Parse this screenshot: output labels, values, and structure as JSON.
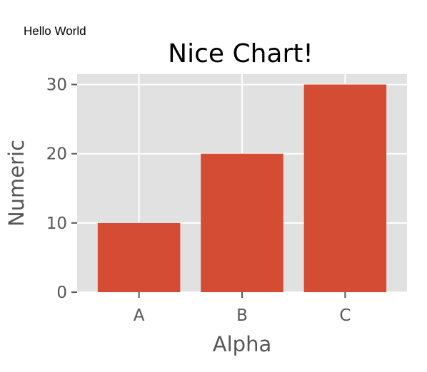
{
  "annotation": "Hello World",
  "chart_data": {
    "type": "bar",
    "title": "Nice Chart!",
    "xlabel": "Alpha",
    "ylabel": "Numeric",
    "categories": [
      "A",
      "B",
      "C"
    ],
    "values": [
      10,
      20,
      30
    ],
    "ylim": [
      0,
      31.5
    ],
    "yticks": [
      0,
      10,
      20,
      30
    ],
    "grid": true,
    "style": "ggplot",
    "colors": {
      "bar": "#d34c33",
      "panel_background": "#e1e1e1",
      "grid": "#ffffff",
      "tick": "#555555",
      "text": "#555555",
      "title": "#000000"
    }
  }
}
